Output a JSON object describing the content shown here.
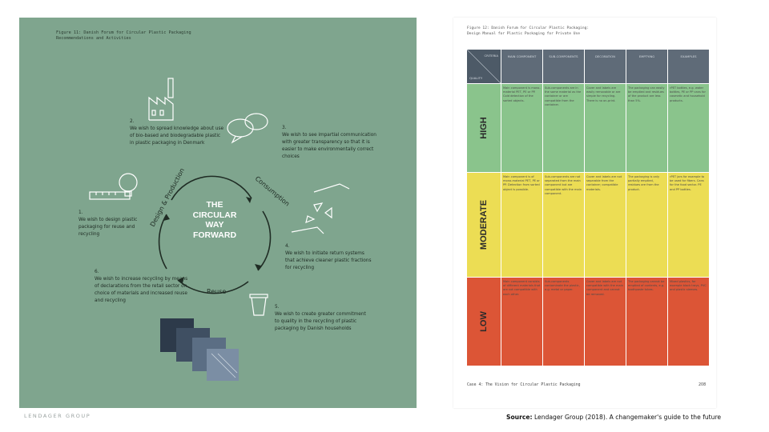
{
  "left_page": {
    "figure_title": "Figure 11: Danish Forum for Circular Plastic Packaging\nRecommendations and Activities",
    "center_title": "THE\nCIRCULAR\nWAY\nFORWARD",
    "arc_labels": {
      "design": "Design & Production",
      "consumption": "Consumption",
      "reuse": "Reuse"
    },
    "steps": [
      {
        "num": "1.",
        "text": "We wish to design plastic packaging for reuse and recycling"
      },
      {
        "num": "2.",
        "text": "We wish to spread knowledge about use of bio-based and biodegradable plastic in plastic packaging in Denmark"
      },
      {
        "num": "3.",
        "text": "We wish to see impartial communication with greater transparency so that it is easier to make environmentally correct choices"
      },
      {
        "num": "4.",
        "text": "We wish to initiate return systems that achieve cleaner plastic fractions for recycling"
      },
      {
        "num": "5.",
        "text": "We wish to create greater commitment to quality in the recycling of plastic packaging by Danish households"
      },
      {
        "num": "6.",
        "text": "We wish to increase recycling by means of declarations from the retail sector on choice of materials and increased reuse and recycling"
      }
    ]
  },
  "right_page": {
    "figure_title": "Figure 12: Danish Forum for Circular Plastic Packaging:\nDesign Manual for Plastic Packaging for Private Use",
    "corner_top": "CRITERIA",
    "corner_bottom": "QUALITY",
    "headers": [
      "MAIN COMPONENT",
      "SUB-COMPONENTS",
      "DECORATION",
      "EMPTYING",
      "EXAMPLES"
    ],
    "bands": [
      {
        "label": "HIGH",
        "color": "#8ac48c",
        "cells": [
          "Main component is mono-material PET, PE or PP. Cold detection of the sorted objects.",
          "Sub-components are in the same material as the container or are compatible from the container.",
          "Cover and labels are easily removable or are simple for recycling. There is no on-print.",
          "The packaging can easily be emptied and residues of the product are less than 5%.",
          "rPET bottles, e.g. water bottles, PE or PP cans for cosmetic and household products."
        ]
      },
      {
        "label": "MODERATE",
        "color": "#ecdd54",
        "cells": [
          "Main component is of mono-material PET, PE or PP. Detection from sorted object is possible.",
          "Sub-components are not separated from the main component but are compatible with the main component.",
          "Cover and labels are not separable from the container; compatible materials.",
          "The packaging is only partially emptied, residues are from the product.",
          "rPET jars for example to be used for fibers. Cans for the food sector. PE and PP bottles."
        ]
      },
      {
        "label": "LOW",
        "color": "#dc5536",
        "cells": [
          "Main component consists of different materials that are not compatible with each other.",
          "Sub-components contaminate the plastic, e.g. metal or paper.",
          "Cover and labels are not compatible with the main component and cannot be removed.",
          "The packaging cannot be emptied of contents, e.g. toothpaste tubes.",
          "Mixed plastics, for example black trays, PVC and plastic sleeves."
        ]
      }
    ],
    "footer": "Case 4: The Vision for Circular Plastic Packaging",
    "page_number": "208"
  },
  "logo_text": "LENDAGER GROUP",
  "source": {
    "label": "Source:",
    "text": "Lendager Group (2018). A changemaker's guide to the future"
  },
  "colors": {
    "green_page": "#7fa58e",
    "header_gray": "#5f6b78"
  }
}
